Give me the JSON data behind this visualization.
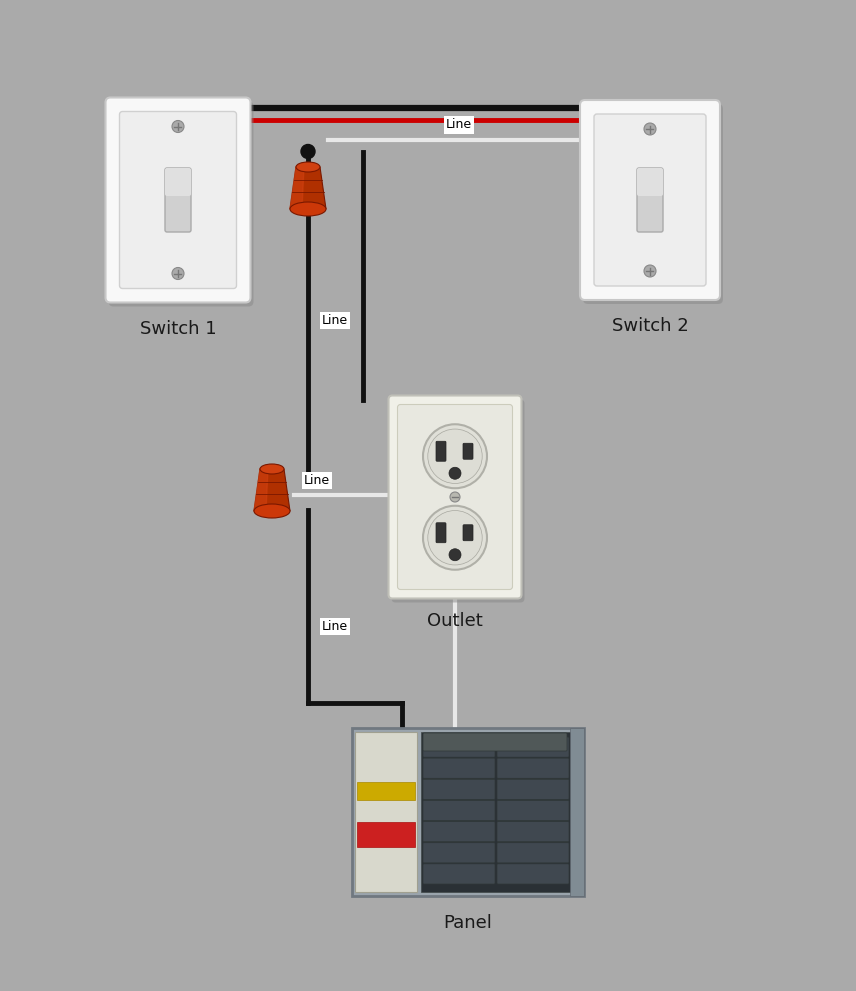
{
  "bg_color": "#aaaaaa",
  "wire_black": "#111111",
  "wire_red": "#cc0000",
  "wire_white": "#e8e8e8",
  "wire_nut_body": "#b03000",
  "wire_nut_highlight": "#d04010",
  "wire_nut_shadow": "#7a1800",
  "switch_outer": "#f8f8f8",
  "switch_inner": "#eeeeee",
  "switch_toggle": "#d8d8d8",
  "outlet_outer": "#f0f0e8",
  "outlet_inner": "#e8e8e0",
  "outlet_socket_bg": "#e0e0d8",
  "outlet_slot": "#333333",
  "panel_metal": "#9aa4ac",
  "panel_dark": "#2a3035",
  "panel_breaker": "#404850",
  "panel_label_strip": "#c8c8b8",
  "label_color": "#1a1a1a",
  "label_fs": 13,
  "line_label_fs": 9,
  "wire_lw": 3.5,
  "switch1_label": "Switch 1",
  "switch2_label": "Switch 2",
  "outlet_label": "Outlet",
  "panel_label": "Panel"
}
